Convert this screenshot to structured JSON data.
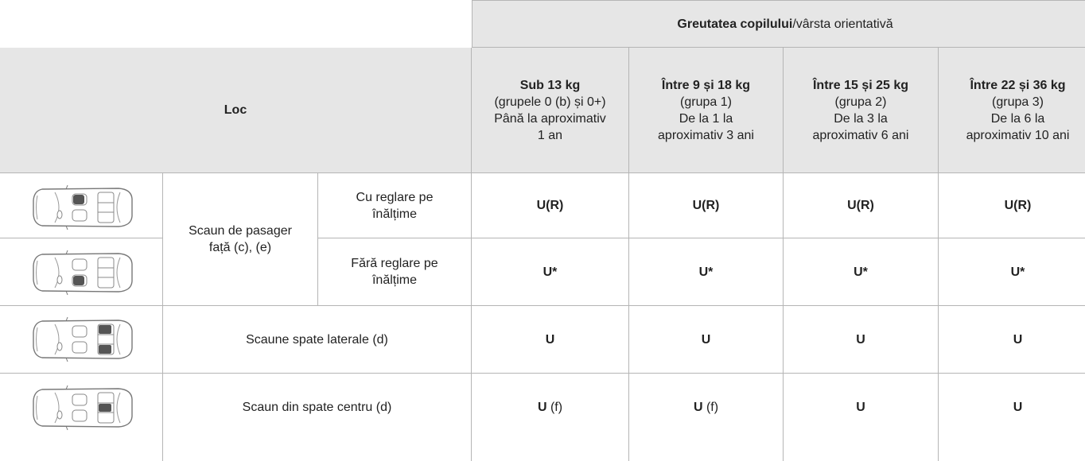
{
  "header": {
    "group_title_bold": "Greutatea copilului",
    "group_title_rest": "/vârsta orientativă",
    "place": "Loc",
    "columns": [
      {
        "title": "Sub 13 kg",
        "lines": [
          "(grupele 0 (b) și 0+)",
          "Până la aproximativ",
          "1 an"
        ]
      },
      {
        "title": "Între 9 și 18 kg",
        "lines": [
          "(grupa 1)",
          "De la 1 la",
          "aproximativ 3 ani"
        ]
      },
      {
        "title": "Între 15 și 25 kg",
        "lines": [
          "(grupa 2)",
          "De la 3 la",
          "aproximativ 6 ani"
        ]
      },
      {
        "title": "Între 22 și 36 kg",
        "lines": [
          "(grupa 3)",
          "De la 6 la",
          "aproximativ 10 ani"
        ]
      }
    ]
  },
  "rows": [
    {
      "seat": [
        "Scaun de pasager",
        "față (c), (e)"
      ],
      "variant": [
        "Cu reglare pe",
        "înălțime"
      ],
      "values": [
        {
          "main": "U(R)"
        },
        {
          "main": "U(R)"
        },
        {
          "main": "U(R)"
        },
        {
          "main": "U(R)"
        }
      ]
    },
    {
      "variant": [
        "Fără reglare pe",
        "înălțime"
      ],
      "values": [
        {
          "main": "U*"
        },
        {
          "main": "U*"
        },
        {
          "main": "U*"
        },
        {
          "main": "U*"
        }
      ]
    },
    {
      "seat": [
        "Scaune spate laterale (d)"
      ],
      "values": [
        {
          "main": "U"
        },
        {
          "main": "U"
        },
        {
          "main": "U"
        },
        {
          "main": "U"
        }
      ]
    },
    {
      "seat": [
        "Scaun din spate centru (d)"
      ],
      "values": [
        {
          "main": "U",
          "note": "(f)"
        },
        {
          "main": "U",
          "note": "(f)"
        },
        {
          "main": "U"
        },
        {
          "main": "U"
        }
      ]
    }
  ]
}
